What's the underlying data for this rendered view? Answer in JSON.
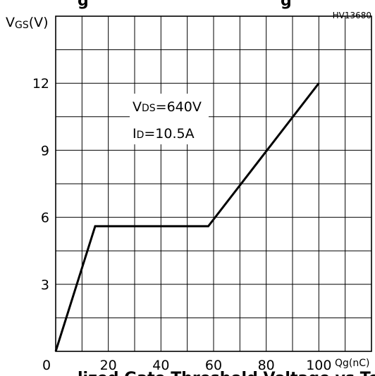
{
  "chart_data": {
    "type": "line",
    "title": "",
    "figure_code": "HV13680",
    "ylabel": "V",
    "ylabel_sub": "GS",
    "ylabel_unit": "(V)",
    "xlabel": "Qg(nC)",
    "xlim": [
      0,
      120
    ],
    "ylim": [
      0,
      15
    ],
    "x_ticks": [
      0,
      20,
      40,
      60,
      80,
      100
    ],
    "y_ticks": [
      3,
      6,
      9,
      12
    ],
    "x_tick_labels": [
      "0",
      "20",
      "40",
      "60",
      "80",
      "100"
    ],
    "y_tick_labels": [
      "3",
      "6",
      "9",
      "12"
    ],
    "grid": true,
    "series": [
      {
        "x": [
          0,
          15,
          58,
          100
        ],
        "y": [
          0,
          5.6,
          5.6,
          12
        ]
      }
    ],
    "annotations": [
      {
        "main": "V",
        "sub": "DS",
        "rest": "=640V"
      },
      {
        "main": "I",
        "sub": "D",
        "rest": "=10.5A"
      }
    ],
    "cut_off_title_top": "g",
    "cut_off_title_top_right": "g",
    "cut_off_caption_bottom": "lized Gate Threshold Voltage vs Te"
  }
}
